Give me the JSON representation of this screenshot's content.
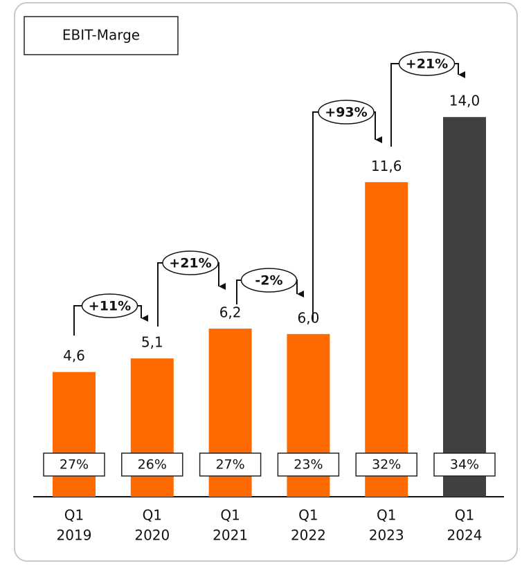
{
  "chart_data": {
    "type": "bar",
    "title": "EBIT-Marge",
    "categories": [
      [
        "Q1",
        "2019"
      ],
      [
        "Q1",
        "2020"
      ],
      [
        "Q1",
        "2021"
      ],
      [
        "Q1",
        "2022"
      ],
      [
        "Q1",
        "2023"
      ],
      [
        "Q1",
        "2024"
      ]
    ],
    "values": [
      4.6,
      5.1,
      6.2,
      6.0,
      11.6,
      14.0
    ],
    "value_labels": [
      "4,6",
      "5,1",
      "6,2",
      "6,0",
      "11,6",
      "14,0"
    ],
    "colors": [
      "#ff6a00",
      "#ff6a00",
      "#ff6a00",
      "#ff6a00",
      "#ff6a00",
      "#404040"
    ],
    "margins": [
      "27%",
      "26%",
      "27%",
      "23%",
      "32%",
      "34%"
    ],
    "changes": [
      "+11%",
      "+21%",
      "-2%",
      "+93%",
      "+21%"
    ]
  }
}
